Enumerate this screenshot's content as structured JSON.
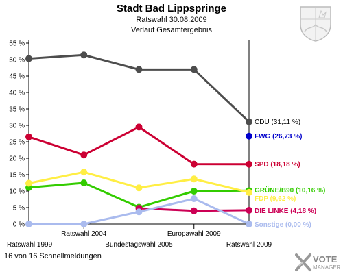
{
  "header": {
    "title": "Stadt Bad Lippspringe",
    "subtitle": "Ratswahl 30.08.2009",
    "subtitle2": "Verlauf Gesamtergebnis"
  },
  "footer": {
    "status": "16 von 16 Schnellmeldungen"
  },
  "branding": {
    "line1": "VOTE",
    "line2": "MANAGER"
  },
  "chart_data": {
    "type": "line",
    "categories": [
      "Ratswahl 1999",
      "Ratswahl 2004",
      "Bundestagswahl 2005",
      "Europawahl 2009",
      "Ratswahl 2009"
    ],
    "ylim": [
      0,
      55
    ],
    "yticks": [
      "0 %",
      "5 %",
      "10 %",
      "15 %",
      "20 %",
      "25 %",
      "30 %",
      "35 %",
      "40 %",
      "45 %",
      "50 %",
      "55 %"
    ],
    "grid": false,
    "series": [
      {
        "name": "CDU",
        "label": "CDU (31,11 %)",
        "color": "#4d4d4d",
        "values": [
          50.3,
          51.4,
          47.0,
          47.0,
          31.11
        ]
      },
      {
        "name": "FWG",
        "label": "FWG (26,73 %)",
        "color": "#0000cc",
        "values": [
          null,
          null,
          null,
          null,
          26.73
        ]
      },
      {
        "name": "SPD",
        "label": "SPD (18,18 %)",
        "color": "#cc0033",
        "values": [
          26.5,
          21.0,
          29.5,
          18.2,
          18.18
        ]
      },
      {
        "name": "GRÜNE/B90",
        "label": "GRÜNE/B90 (10,16 %)",
        "color": "#33cc00",
        "values": [
          11.1,
          12.5,
          5.1,
          10.0,
          10.16
        ]
      },
      {
        "name": "FDP",
        "label": "FDP (9,62 %)",
        "color": "#ffee44",
        "values": [
          12.4,
          15.8,
          11.0,
          13.7,
          9.62
        ]
      },
      {
        "name": "DIE LINKE",
        "label": "DIE LINKE (4,18 %)",
        "color": "#cc0055",
        "values": [
          null,
          null,
          4.8,
          4.0,
          4.18
        ]
      },
      {
        "name": "Sonstige",
        "label": "Sonstige (0,00 %)",
        "color": "#aabbee",
        "values": [
          0.0,
          0.0,
          3.7,
          7.7,
          0.0
        ]
      }
    ]
  }
}
